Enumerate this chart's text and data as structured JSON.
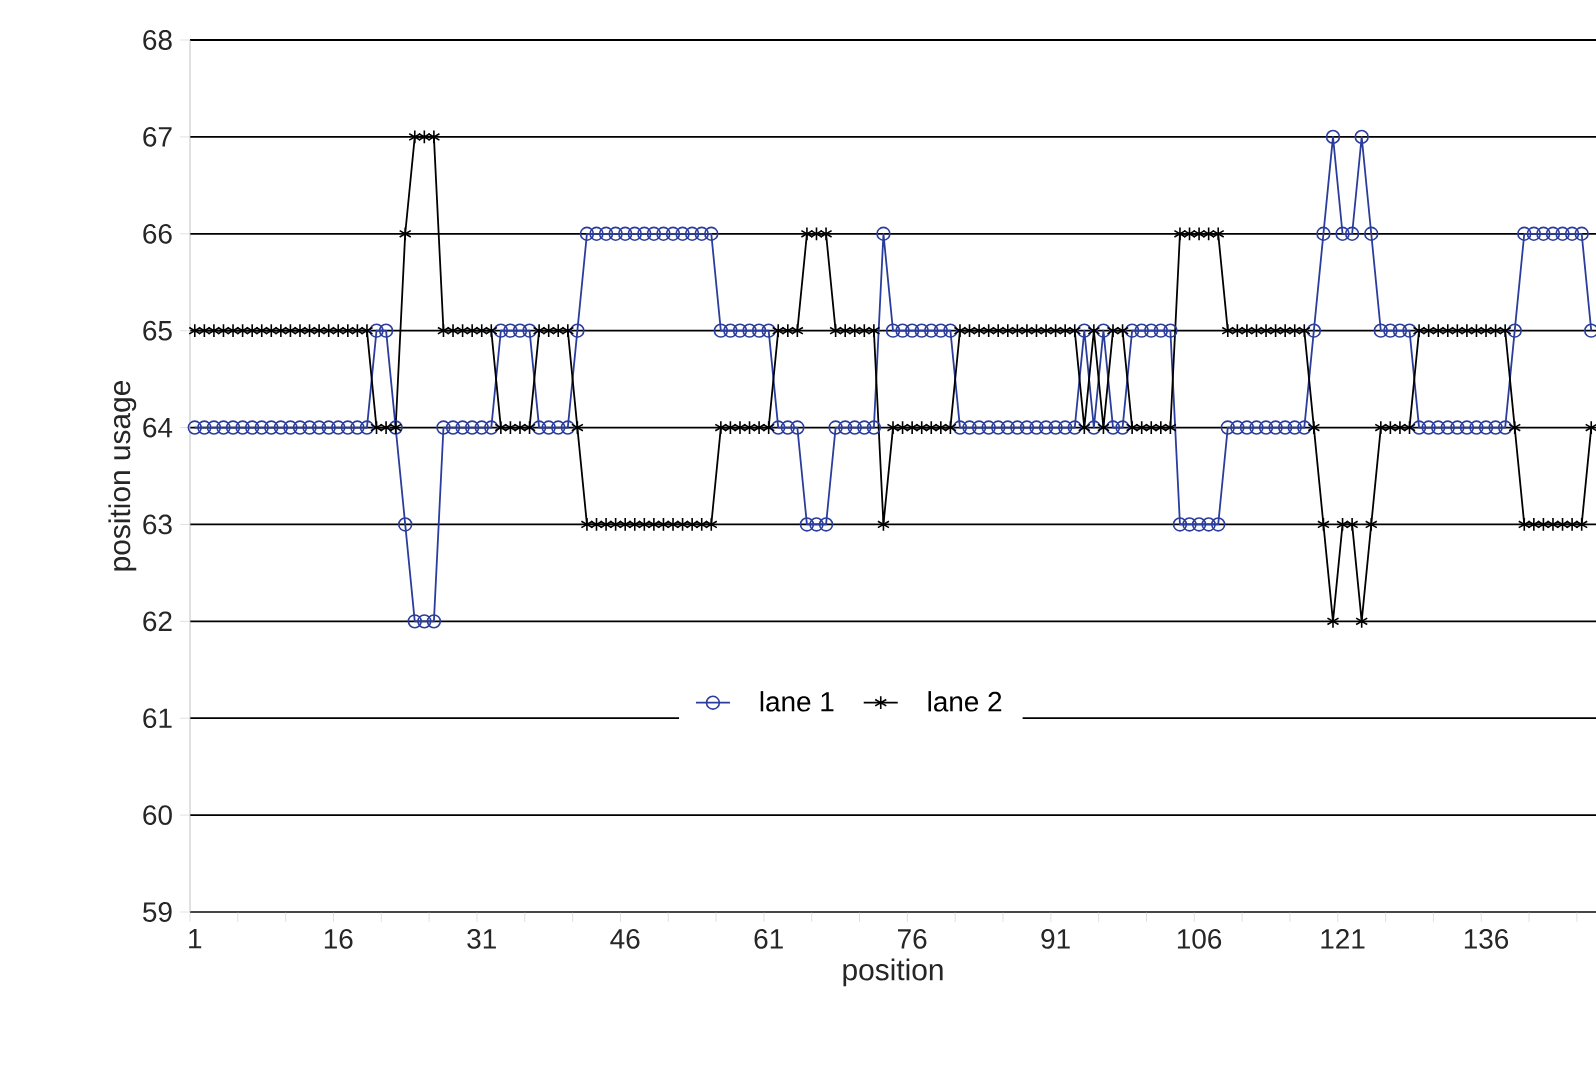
{
  "chart_data": {
    "type": "line",
    "xlabel": "position",
    "ylabel": "position usage",
    "categories": [
      "1",
      null,
      null,
      null,
      null,
      null,
      null,
      null,
      null,
      null,
      null,
      null,
      null,
      null,
      null,
      "16",
      null,
      null,
      null,
      null,
      null,
      null,
      null,
      null,
      null,
      null,
      null,
      null,
      null,
      null,
      "31",
      null,
      null,
      null,
      null,
      null,
      null,
      null,
      null,
      null,
      null,
      null,
      null,
      null,
      null,
      "46",
      null,
      null,
      null,
      null,
      null,
      null,
      null,
      null,
      null,
      null,
      null,
      null,
      null,
      null,
      "61",
      null,
      null,
      null,
      null,
      null,
      null,
      null,
      null,
      null,
      null,
      null,
      null,
      null,
      null,
      "76",
      null,
      null,
      null,
      null,
      null,
      null,
      null,
      null,
      null,
      null,
      null,
      null,
      null,
      null,
      "91",
      null,
      null,
      null,
      null,
      null,
      null,
      null,
      null,
      null,
      null,
      null,
      null,
      null,
      null,
      "106",
      null,
      null,
      null,
      null,
      null,
      null,
      null,
      null,
      null,
      null,
      null,
      null,
      null,
      null,
      "121",
      null,
      null,
      null,
      null,
      null,
      null,
      null,
      null,
      null,
      null,
      null,
      null,
      null,
      null,
      "136",
      null,
      null,
      null,
      null,
      null,
      null,
      null,
      null,
      null,
      null,
      null
    ],
    "series": [
      {
        "name": "lane 1",
        "color": "#2b3d9c",
        "marker": "circle",
        "values": [
          64,
          64,
          64,
          64,
          64,
          64,
          64,
          64,
          64,
          64,
          64,
          64,
          64,
          64,
          64,
          64,
          64,
          64,
          64,
          65,
          65,
          64,
          63,
          62,
          62,
          62,
          64,
          64,
          64,
          64,
          64,
          64,
          65,
          65,
          65,
          65,
          64,
          64,
          64,
          64,
          65,
          66,
          66,
          66,
          66,
          66,
          66,
          66,
          66,
          66,
          66,
          66,
          66,
          66,
          66,
          65,
          65,
          65,
          65,
          65,
          65,
          64,
          64,
          64,
          63,
          63,
          63,
          64,
          64,
          64,
          64,
          64,
          66,
          65,
          65,
          65,
          65,
          65,
          65,
          65,
          64,
          64,
          64,
          64,
          64,
          64,
          64,
          64,
          64,
          64,
          64,
          64,
          64,
          65,
          64,
          65,
          64,
          64,
          65,
          65,
          65,
          65,
          65,
          63,
          63,
          63,
          63,
          63,
          64,
          64,
          64,
          64,
          64,
          64,
          64,
          64,
          64,
          65,
          66,
          67,
          66,
          66,
          67,
          66,
          65,
          65,
          65,
          65,
          64,
          64,
          64,
          64,
          64,
          64,
          64,
          64,
          64,
          64,
          65,
          66,
          66,
          66,
          66,
          66,
          66,
          66,
          65
        ]
      },
      {
        "name": "lane 2",
        "color": "#000000",
        "marker": "cross",
        "values": [
          65,
          65,
          65,
          65,
          65,
          65,
          65,
          65,
          65,
          65,
          65,
          65,
          65,
          65,
          65,
          65,
          65,
          65,
          65,
          64,
          64,
          64,
          66,
          67,
          67,
          67,
          65,
          65,
          65,
          65,
          65,
          65,
          64,
          64,
          64,
          64,
          65,
          65,
          65,
          65,
          64,
          63,
          63,
          63,
          63,
          63,
          63,
          63,
          63,
          63,
          63,
          63,
          63,
          63,
          63,
          64,
          64,
          64,
          64,
          64,
          64,
          65,
          65,
          65,
          66,
          66,
          66,
          65,
          65,
          65,
          65,
          65,
          63,
          64,
          64,
          64,
          64,
          64,
          64,
          64,
          65,
          65,
          65,
          65,
          65,
          65,
          65,
          65,
          65,
          65,
          65,
          65,
          65,
          64,
          65,
          64,
          65,
          65,
          64,
          64,
          64,
          64,
          64,
          66,
          66,
          66,
          66,
          66,
          65,
          65,
          65,
          65,
          65,
          65,
          65,
          65,
          65,
          64,
          63,
          62,
          63,
          63,
          62,
          63,
          64,
          64,
          64,
          64,
          65,
          65,
          65,
          65,
          65,
          65,
          65,
          65,
          65,
          65,
          64,
          63,
          63,
          63,
          63,
          63,
          63,
          63,
          64
        ]
      }
    ],
    "ylim": [
      59,
      68
    ],
    "yticks": [
      59,
      60,
      61,
      62,
      63,
      64,
      65,
      66,
      67,
      68
    ],
    "grid": "y",
    "legend": "bottom",
    "line_style": "solid"
  }
}
